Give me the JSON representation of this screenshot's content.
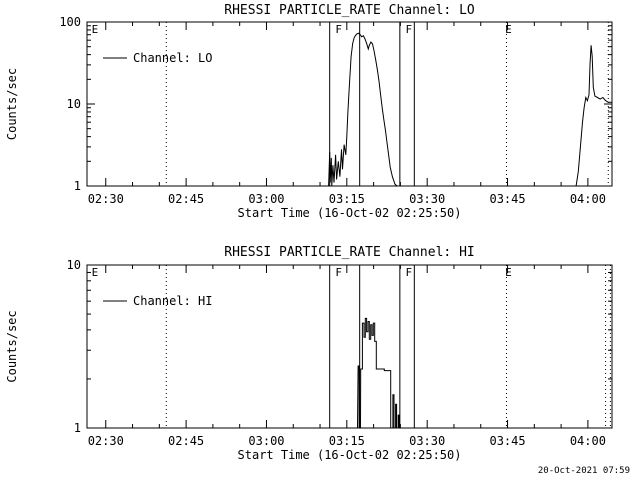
{
  "page": {
    "timestamp": "20-Oct-2021 07:59"
  },
  "chart_data": [
    {
      "type": "line",
      "title": "RHESSI PARTICLE_RATE Channel: LO",
      "xlabel": "Start Time (16-Oct-02 02:25:50)",
      "ylabel": "Counts/sec",
      "legend": "Channel: LO",
      "y_scale": "log",
      "ylim": [
        1,
        100
      ],
      "yticks": [
        [
          1,
          "1"
        ],
        [
          10,
          "10"
        ],
        [
          100,
          "100"
        ]
      ],
      "y_minor": [
        2,
        3,
        4,
        5,
        6,
        7,
        8,
        9,
        20,
        30,
        40,
        50,
        60,
        70,
        80,
        90
      ],
      "x_domain": [
        146.5,
        244.5
      ],
      "xticks": [
        [
          150,
          "02:30"
        ],
        [
          165,
          "02:45"
        ],
        [
          180,
          "03:00"
        ],
        [
          195,
          "03:15"
        ],
        [
          210,
          "03:30"
        ],
        [
          225,
          "03:45"
        ],
        [
          240,
          "04:00"
        ]
      ],
      "x_minor_step": 5,
      "solid_lines": [
        191.8,
        197.4,
        204.9,
        207.6
      ],
      "dotted_lines": [
        161.3,
        224.8,
        243.8
      ],
      "flags": [
        {
          "x": 146.8,
          "label": "E"
        },
        {
          "x": 192.3,
          "label": "F"
        },
        {
          "x": 205.4,
          "label": "F"
        },
        {
          "x": 224.0,
          "label": "E"
        }
      ],
      "series": [
        {
          "name": "Channel: LO",
          "points": [
            [
              146.5,
              1
            ],
            [
              191.6,
              1
            ],
            [
              191.8,
              2.6
            ],
            [
              191.9,
              1.1
            ],
            [
              192.1,
              2.2
            ],
            [
              192.2,
              1
            ],
            [
              192.4,
              1.8
            ],
            [
              192.6,
              1.1
            ],
            [
              192.9,
              2.4
            ],
            [
              193.1,
              1.2
            ],
            [
              193.4,
              2
            ],
            [
              193.7,
              1.3
            ],
            [
              194,
              2.8
            ],
            [
              194.2,
              1.6
            ],
            [
              194.5,
              3.2
            ],
            [
              194.8,
              2.4
            ],
            [
              195,
              4
            ],
            [
              195.2,
              8
            ],
            [
              195.5,
              18
            ],
            [
              195.8,
              38
            ],
            [
              196.1,
              55
            ],
            [
              196.4,
              65
            ],
            [
              196.8,
              71
            ],
            [
              197.2,
              73
            ],
            [
              197.5,
              70
            ],
            [
              197.8,
              66
            ],
            [
              198.1,
              68
            ],
            [
              198.4,
              62
            ],
            [
              198.7,
              55
            ],
            [
              199,
              47
            ],
            [
              199.2,
              52
            ],
            [
              199.5,
              57
            ],
            [
              199.8,
              54
            ],
            [
              200.1,
              44
            ],
            [
              200.4,
              34
            ],
            [
              200.7,
              26
            ],
            [
              201,
              19
            ],
            [
              201.3,
              13
            ],
            [
              201.6,
              9
            ],
            [
              201.9,
              6.5
            ],
            [
              202.2,
              4.8
            ],
            [
              202.5,
              3.4
            ],
            [
              202.8,
              2.4
            ],
            [
              203.1,
              1.7
            ],
            [
              203.5,
              1.3
            ],
            [
              204,
              1.05
            ],
            [
              204.4,
              1
            ],
            [
              237.8,
              1
            ],
            [
              238.2,
              1.5
            ],
            [
              238.6,
              3
            ],
            [
              239,
              6
            ],
            [
              239.3,
              9
            ],
            [
              239.6,
              12
            ],
            [
              239.9,
              11
            ],
            [
              240.2,
              13
            ],
            [
              240.4,
              30
            ],
            [
              240.6,
              52
            ],
            [
              240.8,
              38
            ],
            [
              241,
              16
            ],
            [
              241.3,
              12.5
            ],
            [
              241.8,
              12
            ],
            [
              242.3,
              11.5
            ],
            [
              242.8,
              12
            ],
            [
              243.3,
              11
            ],
            [
              243.8,
              10.5
            ],
            [
              244.5,
              10.5
            ]
          ]
        }
      ]
    },
    {
      "type": "line",
      "title": "RHESSI PARTICLE_RATE Channel: HI",
      "xlabel": "Start Time (16-Oct-02 02:25:50)",
      "ylabel": "Counts/sec",
      "legend": "Channel: HI",
      "y_scale": "log",
      "ylim": [
        1,
        10
      ],
      "yticks": [
        [
          1,
          "1"
        ],
        [
          10,
          "10"
        ]
      ],
      "y_minor": [
        2,
        3,
        4,
        5,
        6,
        7,
        8,
        9
      ],
      "x_domain": [
        146.5,
        244.5
      ],
      "xticks": [
        [
          150,
          "02:30"
        ],
        [
          165,
          "02:45"
        ],
        [
          180,
          "03:00"
        ],
        [
          195,
          "03:15"
        ],
        [
          210,
          "03:30"
        ],
        [
          225,
          "03:45"
        ],
        [
          240,
          "04:00"
        ]
      ],
      "x_minor_step": 5,
      "solid_lines": [
        191.8,
        197.4,
        204.9,
        207.6
      ],
      "dotted_lines": [
        161.3,
        224.8,
        243.3,
        244.2
      ],
      "flags": [
        {
          "x": 146.8,
          "label": "E"
        },
        {
          "x": 192.3,
          "label": "F"
        },
        {
          "x": 205.4,
          "label": "F"
        },
        {
          "x": 224.0,
          "label": "E"
        }
      ],
      "series": [
        {
          "name": "Channel: HI",
          "points": [
            [
              146.5,
              1
            ],
            [
              197,
              1
            ],
            [
              197.1,
              2.4
            ],
            [
              197.3,
              2.4
            ],
            [
              197.3,
              1
            ],
            [
              197.55,
              1
            ],
            [
              197.6,
              2.3
            ],
            [
              197.9,
              2.3
            ],
            [
              197.9,
              4.4
            ],
            [
              198.2,
              4.4
            ],
            [
              198.2,
              3.6
            ],
            [
              198.45,
              3.6
            ],
            [
              198.45,
              4.7
            ],
            [
              198.7,
              4.7
            ],
            [
              198.7,
              3.9
            ],
            [
              198.95,
              3.9
            ],
            [
              198.95,
              4.5
            ],
            [
              199.2,
              4.5
            ],
            [
              199.2,
              3.5
            ],
            [
              199.45,
              3.5
            ],
            [
              199.45,
              4.3
            ],
            [
              199.7,
              4.3
            ],
            [
              199.7,
              3.7
            ],
            [
              199.95,
              3.7
            ],
            [
              199.95,
              4.4
            ],
            [
              200.2,
              4.4
            ],
            [
              200.2,
              3.4
            ],
            [
              200.5,
              3.4
            ],
            [
              200.5,
              2.3
            ],
            [
              202,
              2.3
            ],
            [
              202,
              2.25
            ],
            [
              203.2,
              2.25
            ],
            [
              203.2,
              1
            ],
            [
              203.6,
              1
            ],
            [
              203.6,
              1.6
            ],
            [
              203.8,
              1.6
            ],
            [
              203.8,
              1
            ],
            [
              204.1,
              1
            ],
            [
              204.1,
              1.4
            ],
            [
              204.3,
              1.4
            ],
            [
              204.3,
              1
            ],
            [
              204.6,
              1
            ],
            [
              204.6,
              1.2
            ],
            [
              204.75,
              1.2
            ],
            [
              204.75,
              1
            ],
            [
              244.5,
              1
            ]
          ]
        }
      ]
    }
  ]
}
